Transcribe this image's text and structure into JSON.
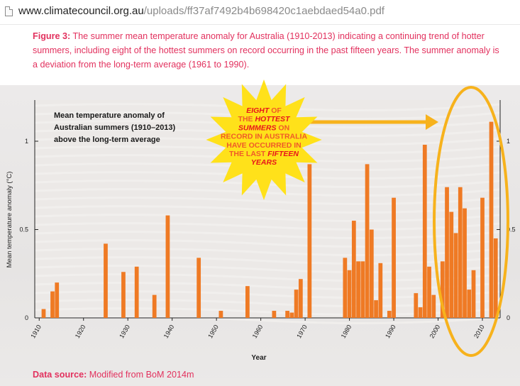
{
  "browser": {
    "url_domain": "www.climatecouncil.org.au",
    "url_path": "/uploads/ff37af7492b4b698420c1aebdaed54a0.pdf"
  },
  "caption": {
    "label": "Figure 3:",
    "text": " The summer mean temperature anomaly for Australia (1910-2013) indicating a continuing trend of hotter summers, including eight of the hottest summers on record occurring in the past fifteen years. The summer anomaly is a deviation from the long-term average (1961 to 1990)."
  },
  "data_source": {
    "label": "Data source:",
    "text": " Modified from BoM 2014m"
  },
  "starburst": {
    "lines": [
      [
        {
          "t": "EIGHT",
          "s": "em"
        },
        {
          "t": " OF",
          "s": "n"
        }
      ],
      [
        {
          "t": "THE ",
          "s": "n"
        },
        {
          "t": "HOTTEST",
          "s": "em"
        }
      ],
      [
        {
          "t": "SUMMERS",
          "s": "em"
        },
        {
          "t": " ON",
          "s": "n"
        }
      ],
      [
        {
          "t": "RECORD IN AUSTRALIA",
          "s": "n"
        }
      ],
      [
        {
          "t": "HAVE OCCURRED IN",
          "s": "n"
        }
      ],
      [
        {
          "t": "THE LAST ",
          "s": "n"
        },
        {
          "t": "FIFTEEN",
          "s": "em"
        }
      ],
      [
        {
          "t": "YEARS",
          "s": "em"
        }
      ]
    ],
    "colors": {
      "fill": "#ffe11a",
      "text": "#f05a28",
      "emphasis": "#e8141b"
    }
  },
  "colors": {
    "bar": "#ef7a24",
    "ellipse": "#f7b21c",
    "arrow": "#f7b21c",
    "title_text": "#1a1a1a",
    "axis": "#222222"
  },
  "chart_data": {
    "type": "bar",
    "title": "Mean temperature anomaly of Australian summers (1910–2013) above the long-term average",
    "title_lines": [
      "Mean temperature anomaly of",
      "Australian summers (1910–2013)",
      "above the long-term average"
    ],
    "xlabel": "Year",
    "ylabel": "Mean temperature anomaly (°C)",
    "xlim": [
      1909,
      2014
    ],
    "ylim": [
      0,
      1.22
    ],
    "xticks": [
      1910,
      1920,
      1930,
      1940,
      1950,
      1960,
      1970,
      1980,
      1990,
      2000,
      2010
    ],
    "yticks": [
      0,
      0.5,
      1
    ],
    "ytick_labels": [
      "0",
      "0.5",
      "1"
    ],
    "yticks_right": [
      0,
      0.5,
      1
    ],
    "ytick_labels_right": [
      "0",
      "0.5",
      "1"
    ],
    "grid": false,
    "x": [
      1911,
      1913,
      1914,
      1925,
      1929,
      1932,
      1936,
      1939,
      1946,
      1951,
      1957,
      1963,
      1966,
      1967,
      1968,
      1969,
      1971,
      1979,
      1980,
      1981,
      1982,
      1983,
      1984,
      1985,
      1986,
      1987,
      1989,
      1990,
      1995,
      1996,
      1997,
      1998,
      1999,
      2001,
      2002,
      2003,
      2004,
      2005,
      2006,
      2007,
      2008,
      2010,
      2012,
      2013
    ],
    "values": [
      0.05,
      0.15,
      0.2,
      0.42,
      0.26,
      0.29,
      0.13,
      0.58,
      0.34,
      0.04,
      0.18,
      0.04,
      0.04,
      0.03,
      0.16,
      0.22,
      0.87,
      0.34,
      0.27,
      0.55,
      0.32,
      0.32,
      0.87,
      0.5,
      0.1,
      0.31,
      0.04,
      0.68,
      0.14,
      0.06,
      0.98,
      0.29,
      0.13,
      0.32,
      0.74,
      0.6,
      0.48,
      0.74,
      0.62,
      0.16,
      0.27,
      0.68,
      1.11,
      0.45
    ]
  }
}
